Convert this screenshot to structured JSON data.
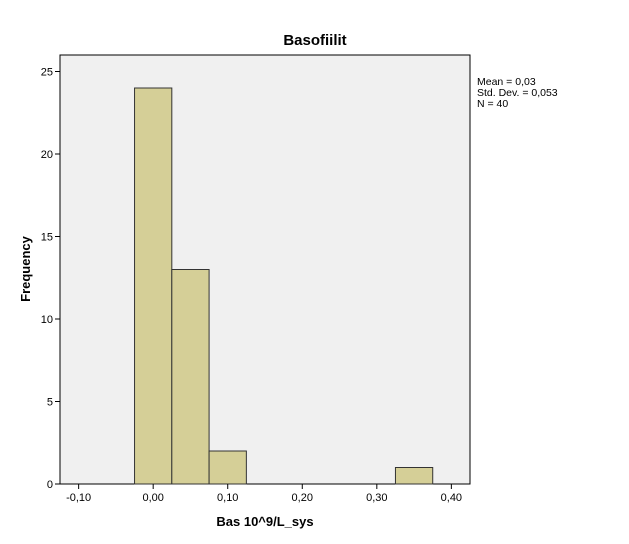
{
  "chart_data": {
    "type": "bar",
    "title": "Basofiilit",
    "xlabel": "Bas 10^9/L_sys",
    "ylabel": "Frequency",
    "xlim": [
      -0.125,
      0.425
    ],
    "ylim": [
      0,
      26
    ],
    "x_ticks": [
      {
        "value": -0.1,
        "label": "-0,10"
      },
      {
        "value": 0.0,
        "label": "0,00"
      },
      {
        "value": 0.1,
        "label": "0,10"
      },
      {
        "value": 0.2,
        "label": "0,20"
      },
      {
        "value": 0.3,
        "label": "0,30"
      },
      {
        "value": 0.4,
        "label": "0,40"
      }
    ],
    "y_ticks": [
      {
        "value": 0,
        "label": "0"
      },
      {
        "value": 5,
        "label": "5"
      },
      {
        "value": 10,
        "label": "10"
      },
      {
        "value": 15,
        "label": "15"
      },
      {
        "value": 20,
        "label": "20"
      },
      {
        "value": 25,
        "label": "25"
      }
    ],
    "bins": [
      {
        "from": -0.025,
        "to": 0.025,
        "count": 24
      },
      {
        "from": 0.025,
        "to": 0.075,
        "count": 13
      },
      {
        "from": 0.075,
        "to": 0.125,
        "count": 2
      },
      {
        "from": 0.325,
        "to": 0.375,
        "count": 1
      }
    ],
    "stats": [
      "Mean = 0,03",
      "Std. Dev. = 0,053",
      "N = 40"
    ],
    "grid": false,
    "colors": {
      "plot_background": "#f0f0f0",
      "bar_fill": "#d5cf97",
      "bar_stroke": "#333333"
    }
  }
}
